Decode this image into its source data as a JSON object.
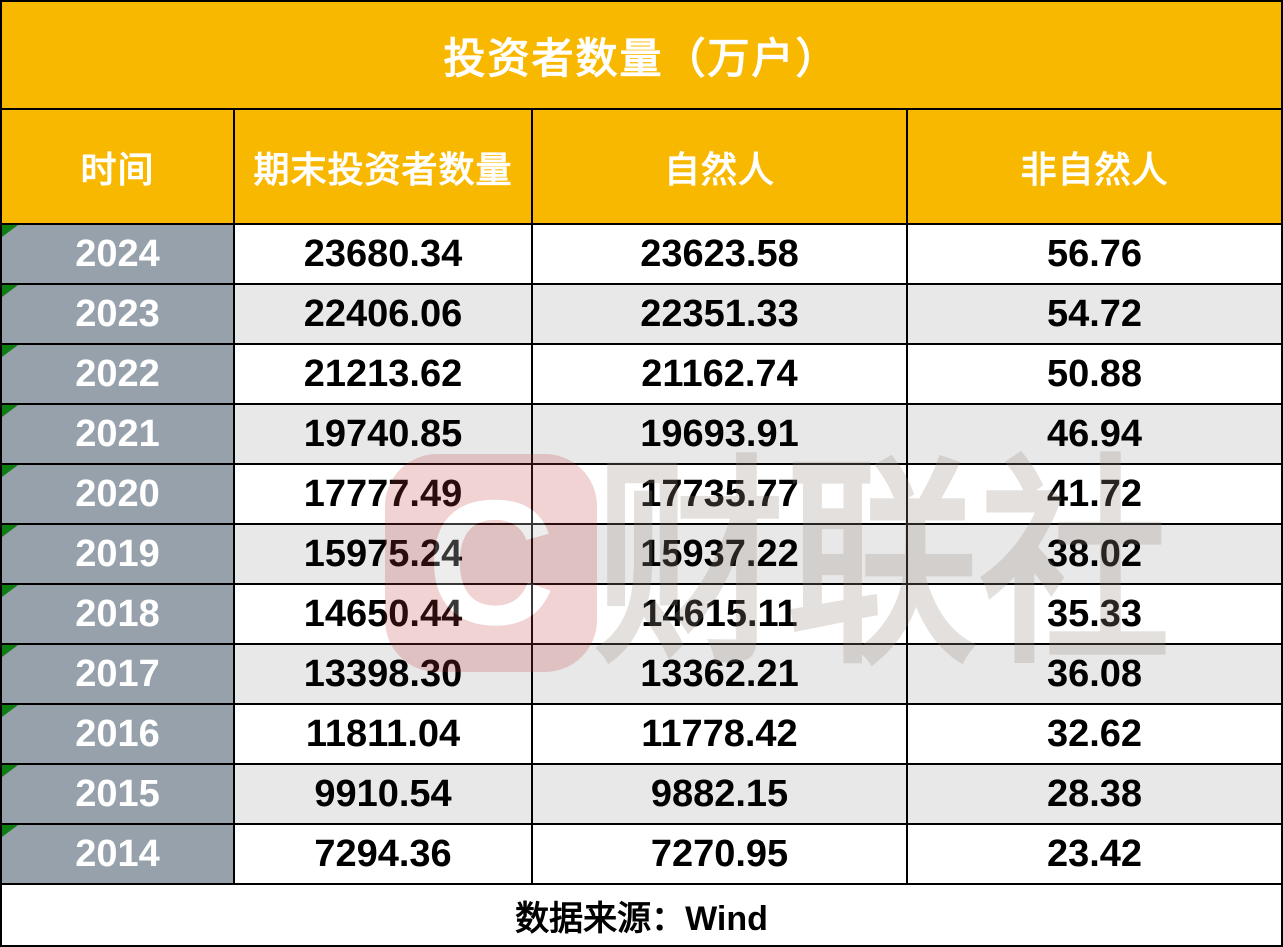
{
  "chart_data": {
    "type": "table",
    "title": "投资者数量（万户）",
    "columns": [
      "时间",
      "期末投资者数量",
      "自然人",
      "非自然人"
    ],
    "rows": [
      {
        "year": "2024",
        "total": "23680.34",
        "natural": "23623.58",
        "non_natural": "56.76"
      },
      {
        "year": "2023",
        "total": "22406.06",
        "natural": "22351.33",
        "non_natural": "54.72"
      },
      {
        "year": "2022",
        "total": "21213.62",
        "natural": "21162.74",
        "non_natural": "50.88"
      },
      {
        "year": "2021",
        "total": "19740.85",
        "natural": "19693.91",
        "non_natural": "46.94"
      },
      {
        "year": "2020",
        "total": "17777.49",
        "natural": "17735.77",
        "non_natural": "41.72"
      },
      {
        "year": "2019",
        "total": "15975.24",
        "natural": "15937.22",
        "non_natural": "38.02"
      },
      {
        "year": "2018",
        "total": "14650.44",
        "natural": "14615.11",
        "non_natural": "35.33"
      },
      {
        "year": "2017",
        "total": "13398.30",
        "natural": "13362.21",
        "non_natural": "36.08"
      },
      {
        "year": "2016",
        "total": "11811.04",
        "natural": "11778.42",
        "non_natural": "32.62"
      },
      {
        "year": "2015",
        "total": "9910.54",
        "natural": "9882.15",
        "non_natural": "28.38"
      },
      {
        "year": "2014",
        "total": "7294.36",
        "natural": "7270.95",
        "non_natural": "23.42"
      }
    ],
    "source_note": "数据来源：Wind",
    "unit": "万户"
  },
  "watermark": {
    "logo_letter": "C",
    "text": "财联社"
  },
  "colors": {
    "header_bg": "#F9B800",
    "year_bg": "#97A1AC",
    "alt_bg": "#E8E8E8",
    "marker_green": "#0F7E12",
    "border_color": "#000000",
    "wm_red": "#C23A3A",
    "wm_gray": "#9A8C82"
  }
}
